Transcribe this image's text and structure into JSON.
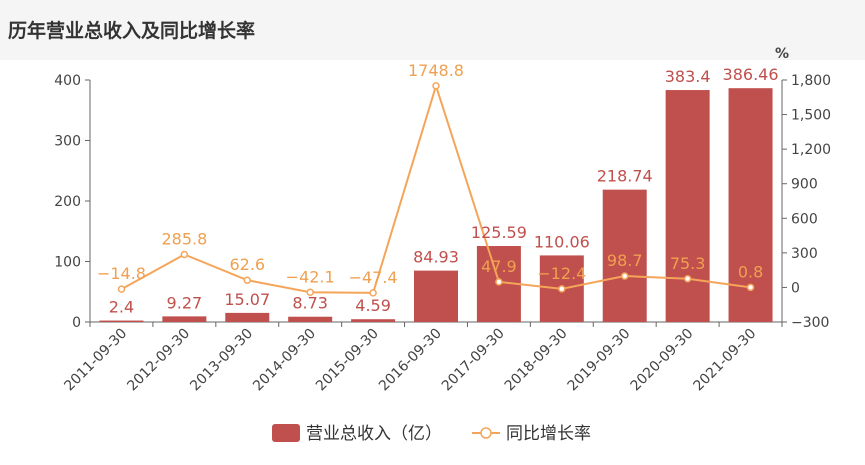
{
  "title": "历年营业总收入及同比增长率",
  "colors": {
    "bar": "#c0504d",
    "line": "#f5a55a",
    "axis": "#666666"
  },
  "chart_data": {
    "type": "bar",
    "categories": [
      "2011-09-30",
      "2012-09-30",
      "2013-09-30",
      "2014-09-30",
      "2015-09-30",
      "2016-09-30",
      "2017-09-30",
      "2018-09-30",
      "2019-09-30",
      "2020-09-30",
      "2021-09-30"
    ],
    "series": [
      {
        "name": "营业总收入（亿）",
        "type": "bar",
        "axis": "left",
        "values": [
          2.4,
          9.27,
          15.07,
          8.73,
          4.59,
          84.93,
          125.59,
          110.06,
          218.74,
          383.4,
          386.46
        ],
        "labels": [
          "2.4",
          "9.27",
          "15.07",
          "8.73",
          "4.59",
          "84.93",
          "125.59",
          "110.06",
          "218.74",
          "383.4",
          "386.46"
        ]
      },
      {
        "name": "同比增长率",
        "type": "line",
        "axis": "right",
        "values": [
          -14.8,
          285.8,
          62.6,
          -42.1,
          -47.4,
          1748.8,
          47.9,
          -12.4,
          98.7,
          75.3,
          0.8
        ],
        "labels": [
          "−14.8",
          "285.8",
          "62.6",
          "−42.1",
          "−47.4",
          "1748.8",
          "47.9",
          "−12.4",
          "98.7",
          "75.3",
          "0.8"
        ]
      }
    ],
    "y_left": {
      "ylim": [
        0,
        400
      ],
      "ticks": [
        "0",
        "100",
        "200",
        "300",
        "400"
      ]
    },
    "y_right": {
      "unit": "%",
      "ylim": [
        -300,
        1800
      ],
      "ticks": [
        "−300",
        "0",
        "300",
        "600",
        "900",
        "1,200",
        "1,500",
        "1,800"
      ]
    },
    "legend": "bottom-center",
    "grid": false
  }
}
